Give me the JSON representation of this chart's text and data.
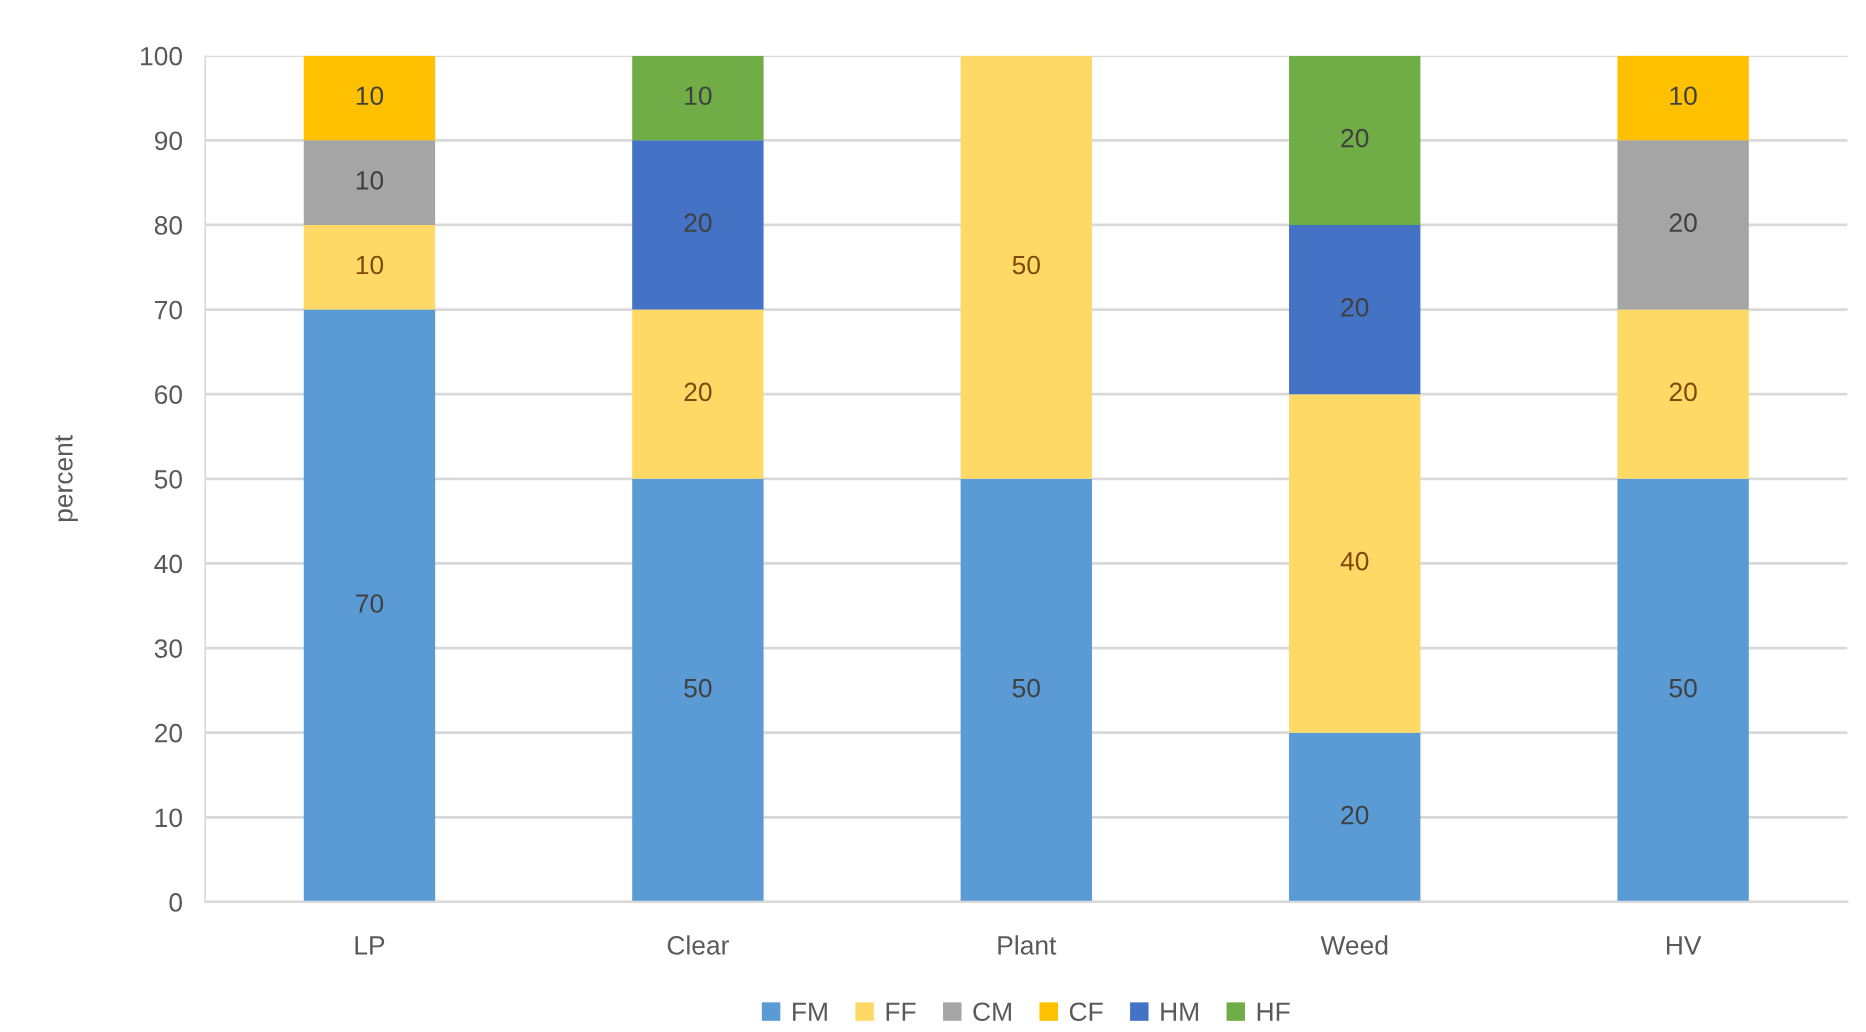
{
  "chart_data": {
    "type": "bar",
    "stacked": true,
    "ylabel": "percent",
    "categories": [
      "LP",
      "Clear",
      "Plant",
      "Weed",
      "HV"
    ],
    "series": [
      {
        "name": "FM",
        "color": "#5b9bd5",
        "values": [
          70,
          50,
          50,
          20,
          50
        ]
      },
      {
        "name": "FF",
        "color": "#ffd966",
        "values": [
          10,
          20,
          50,
          40,
          20
        ]
      },
      {
        "name": "CM",
        "color": "#a5a5a5",
        "values": [
          10,
          null,
          null,
          null,
          20
        ]
      },
      {
        "name": "CF",
        "color": "#ffc000",
        "values": [
          10,
          null,
          null,
          null,
          10
        ]
      },
      {
        "name": "HM",
        "color": "#4472c4",
        "values": [
          null,
          20,
          null,
          20,
          null
        ]
      },
      {
        "name": "HF",
        "color": "#70ad47",
        "values": [
          null,
          10,
          null,
          20,
          null
        ]
      }
    ],
    "ylim": [
      0,
      100
    ],
    "yticks": [
      0,
      10,
      20,
      30,
      40,
      50,
      60,
      70,
      80,
      90,
      100
    ],
    "grid": "y",
    "legend": "bottom",
    "data_labels": true
  }
}
